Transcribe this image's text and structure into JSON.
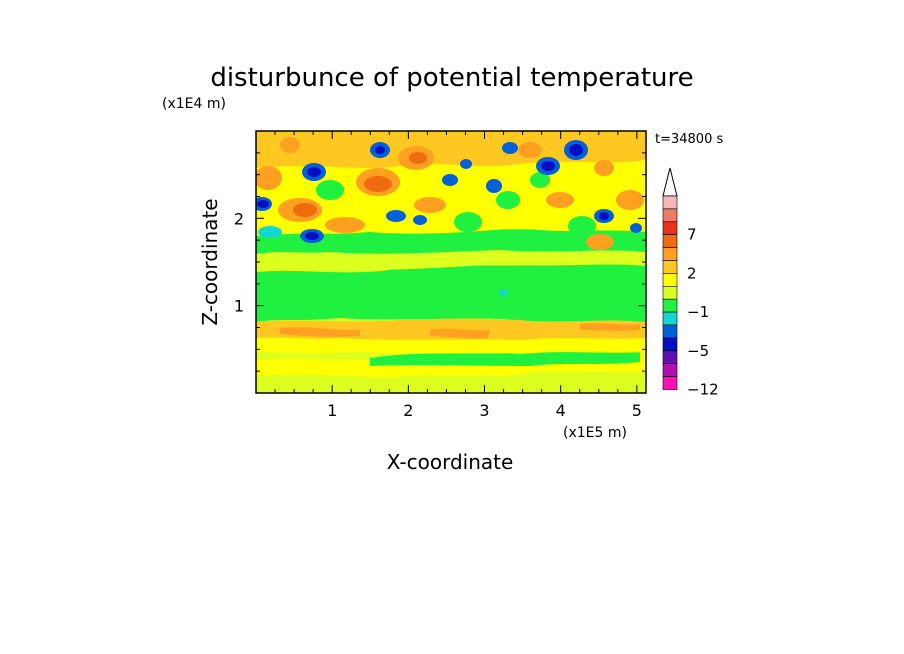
{
  "chart_data": {
    "type": "heatmap",
    "title": "disturbunce of potential temperature",
    "xlabel": "X-coordinate",
    "ylabel": "Z-coordinate",
    "x_unit": "(x1E5 m)",
    "y_unit": "(x1E4 m)",
    "time_label": "t=34800 s",
    "xlim": [
      0,
      5.12
    ],
    "ylim": [
      0,
      3.0
    ],
    "x_ticks": [
      1,
      2,
      3,
      4,
      5
    ],
    "y_ticks": [
      1,
      2
    ],
    "colorbar": {
      "tick_labels": [
        "7",
        "2",
        "−1",
        "−5",
        "−12"
      ],
      "levels_top_to_bottom": [
        12,
        9,
        7,
        5,
        3,
        2,
        1,
        0,
        -1,
        -2,
        -3,
        -5,
        -7,
        -9,
        -12
      ],
      "colors_top_to_bottom": [
        "#f4b8b8",
        "#ee7a6a",
        "#e8321e",
        "#f06a10",
        "#ffa020",
        "#ffc820",
        "#ffff00",
        "#dcff20",
        "#20f040",
        "#10d8d0",
        "#0060d8",
        "#0010c0",
        "#6010b0",
        "#b010b0",
        "#ff10b0"
      ],
      "extend_top": true
    },
    "bands": [
      {
        "z_range": [
          0.0,
          0.28
        ],
        "value": 0.5,
        "desc": "yellow-green"
      },
      {
        "z_range": [
          0.28,
          0.42
        ],
        "value": -1.0,
        "desc": "green"
      },
      {
        "z_range": [
          0.42,
          0.62
        ],
        "value": 1.5,
        "desc": "yellow"
      },
      {
        "z_range": [
          0.62,
          0.8
        ],
        "value": 2.5,
        "desc": "orange"
      },
      {
        "z_range": [
          0.8,
          1.55
        ],
        "value": -1.0,
        "desc": "green"
      },
      {
        "z_range": [
          1.55,
          1.85
        ],
        "value": 0.5,
        "desc": "yellow-green"
      },
      {
        "z_range": [
          1.85,
          3.0
        ],
        "value": "mixed -7 to 7",
        "desc": "wave pattern"
      }
    ],
    "grid": false,
    "legend": "colorbar right"
  }
}
